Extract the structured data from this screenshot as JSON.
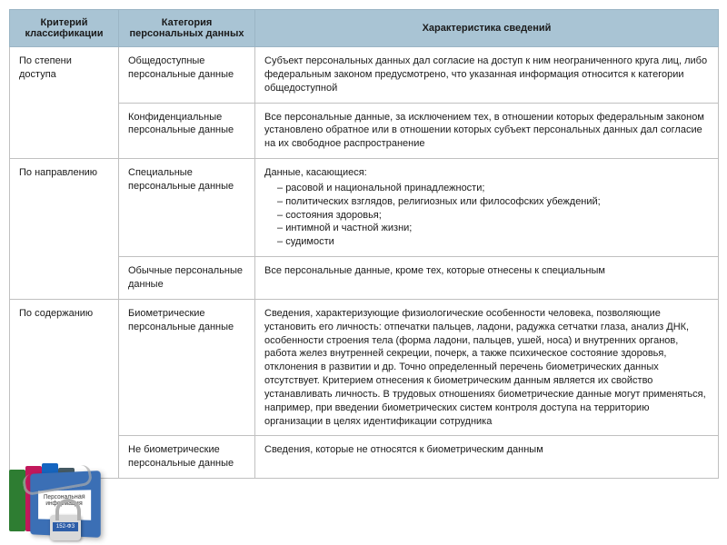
{
  "headers": {
    "c1": "Критерий классификации",
    "c2": "Категория персональных данных",
    "c3": "Характеристика сведений"
  },
  "groups": [
    {
      "criterion": "По степени доступа",
      "rows": [
        {
          "category": "Общедоступные персональные данные",
          "desc": "Субъект персональных данных дал согласие на доступ к ним неограниченного круга лиц, либо федеральным законом предусмотрено, что указанная информация относится к категории общедоступной"
        },
        {
          "category": "Конфиденциальные персональные данные",
          "desc": "Все персональные данные, за исключением тех, в отношении которых федеральным законом установлено обратное или в отношении которых субъект персональных данных дал согласие на их свободное распространение"
        }
      ]
    },
    {
      "criterion": "По направлению",
      "rows": [
        {
          "category": "Специальные персональные данные",
          "desc_intro": "Данные, касающиеся:",
          "bullets": [
            "расовой и национальной принадлежности;",
            "политических взглядов, религиозных или философских убеждений;",
            "состояния здоровья;",
            "интимной и частной жизни;",
            "судимости"
          ]
        },
        {
          "category": "Обычные персональные данные",
          "desc": "Все персональные данные, кроме тех, которые отнесены к специальным"
        }
      ]
    },
    {
      "criterion": "По содержанию",
      "rows": [
        {
          "category": "Биометрические персональные данные",
          "desc": "Сведения, характеризующие физиологические особенности человека, позволяющие установить его личность: отпечатки пальцев, ладони, радужка сетчатки глаза, анализ ДНК, особенности строения тела (форма ладони, пальцев, ушей, носа) и внутренних органов, работа желез внутренней секреции, почерк, а также психическое состояние здоровья, отклонения в развитии и др. Точно определенный перечень биометрических данных отсутствует. Критерием отнесения к биометрическим данным является их свойство устанавливать личность. В трудовых отношениях биометрические данные могут применяться, например, при введении биометрических систем контроля доступа на территорию организации в целях идентификации сотрудника"
        },
        {
          "category": "Не биометрические персональные данные",
          "desc": "Сведения, которые не относятся к биометрическим данным"
        }
      ]
    }
  ],
  "overlay": {
    "binder_label": "Персональная информация",
    "lock_text": "152-ФЗ"
  },
  "colors": {
    "header_bg": "#a9c4d4",
    "border": "#c0c0c0"
  }
}
